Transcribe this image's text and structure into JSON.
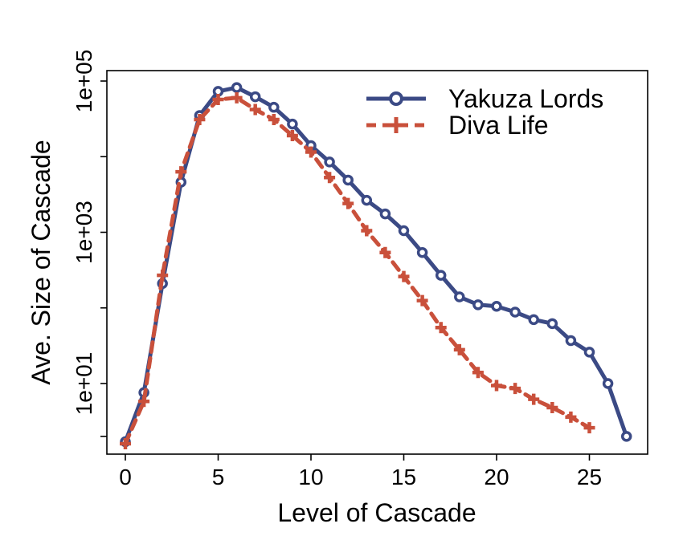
{
  "chart_data": {
    "type": "line",
    "title": "",
    "xlabel": "Level of Cascade",
    "ylabel": "Ave. Size of Cascade",
    "y_scale": "log",
    "xlim": [
      -1,
      28
    ],
    "ylim": [
      1.2,
      120000
    ],
    "x_ticks": [
      0,
      5,
      10,
      15,
      20,
      25
    ],
    "x_tick_labels": [
      "0",
      "5",
      "10",
      "15",
      "20",
      "25"
    ],
    "y_ticks": [
      10,
      1000,
      100000
    ],
    "y_tick_labels": [
      "1e+01",
      "1e+03",
      "1e+05"
    ],
    "y_minor_ticks": [
      2,
      100,
      10000
    ],
    "grid": false,
    "legend_position": "top-right",
    "series": [
      {
        "name": "Yakuza Lords",
        "color": "#3b4a85",
        "line_style": "solid",
        "marker": "circle",
        "x": [
          0,
          1,
          2,
          3,
          4,
          5,
          6,
          7,
          8,
          9,
          10,
          11,
          12,
          13,
          14,
          15,
          16,
          17,
          18,
          19,
          20,
          21,
          22,
          23,
          24,
          25,
          26,
          27
        ],
        "values": [
          1.7,
          7.6,
          210,
          4600,
          35000,
          73000,
          82000,
          62000,
          45000,
          27000,
          14000,
          8500,
          4900,
          2650,
          1750,
          1050,
          540,
          270,
          140,
          110,
          105,
          88,
          70,
          62,
          37,
          26,
          10,
          2.0
        ]
      },
      {
        "name": "Diva Life",
        "color": "#c9503b",
        "line_style": "dashed",
        "marker": "plus",
        "x": [
          0,
          1,
          2,
          3,
          4,
          5,
          6,
          7,
          8,
          9,
          10,
          11,
          12,
          13,
          14,
          15,
          16,
          17,
          18,
          19,
          20,
          21,
          22,
          23,
          24,
          25
        ],
        "values": [
          1.6,
          5.8,
          270,
          6300,
          31000,
          57000,
          60000,
          42000,
          31000,
          19000,
          11500,
          5300,
          2400,
          1050,
          540,
          260,
          125,
          55,
          28,
          14,
          9.4,
          8.6,
          6.2,
          4.8,
          3.6,
          2.6
        ]
      }
    ]
  }
}
